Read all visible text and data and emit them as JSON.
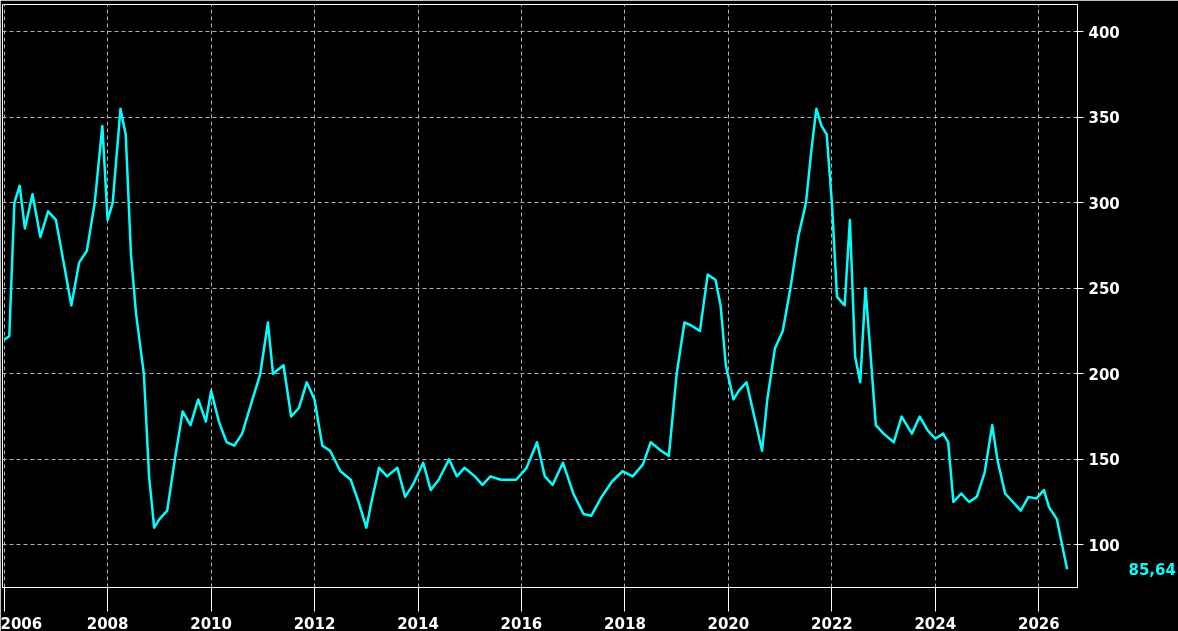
{
  "chart_data": {
    "type": "line",
    "x": [
      "2006-01-01",
      "2006-02-06",
      "2006-03-14",
      "2006-04-20",
      "2006-05-27",
      "2006-07-20",
      "2006-09-13",
      "2006-11-07",
      "2007-01-01",
      "2007-02-25",
      "2007-04-20",
      "2007-06-14",
      "2007-08-08",
      "2007-10-02",
      "2007-11-25",
      "2008-01-01",
      "2008-02-06",
      "2008-04-01",
      "2008-05-08",
      "2008-06-14",
      "2008-07-20",
      "2008-09-13",
      "2008-10-20",
      "2008-11-25",
      "2009-01-01",
      "2009-02-25",
      "2009-04-20",
      "2009-06-14",
      "2009-08-08",
      "2009-10-02",
      "2009-11-25",
      "2010-01-01",
      "2010-02-25",
      "2010-04-20",
      "2010-06-14",
      "2010-08-08",
      "2010-10-20",
      "2010-12-14",
      "2011-02-06",
      "2011-03-14",
      "2011-05-27",
      "2011-07-20",
      "2011-09-13",
      "2011-11-07",
      "2012-01-01",
      "2012-02-25",
      "2012-04-20",
      "2012-07-02",
      "2012-09-13",
      "2012-11-07",
      "2013-01-01",
      "2013-02-06",
      "2013-04-01",
      "2013-05-27",
      "2013-08-08",
      "2013-10-02",
      "2013-11-25",
      "2014-02-06",
      "2014-04-01",
      "2014-05-27",
      "2014-08-08",
      "2014-10-02",
      "2014-11-25",
      "2015-02-06",
      "2015-04-01",
      "2015-05-27",
      "2015-08-08",
      "2015-11-25",
      "2016-02-06",
      "2016-04-20",
      "2016-06-14",
      "2016-08-08",
      "2016-10-20",
      "2017-01-01",
      "2017-03-14",
      "2017-05-08",
      "2017-07-20",
      "2017-10-02",
      "2017-12-14",
      "2018-02-25",
      "2018-05-08",
      "2018-07-02",
      "2018-09-13",
      "2018-11-07",
      "2019-01-01",
      "2019-02-25",
      "2019-04-20",
      "2019-06-14",
      "2019-08-08",
      "2019-10-02",
      "2019-11-07",
      "2019-12-14",
      "2020-02-06",
      "2020-03-14",
      "2020-05-08",
      "2020-07-02",
      "2020-08-26",
      "2020-10-02",
      "2020-11-25",
      "2021-01-19",
      "2021-03-14",
      "2021-05-08",
      "2021-07-02",
      "2021-08-08",
      "2021-09-13",
      "2021-10-20",
      "2021-11-25",
      "2022-01-01",
      "2022-02-06",
      "2022-04-01",
      "2022-05-08",
      "2022-06-14",
      "2022-07-20",
      "2022-08-26",
      "2022-10-02",
      "2022-11-07",
      "2023-01-01",
      "2023-03-14",
      "2023-05-08",
      "2023-07-20",
      "2023-09-13",
      "2023-11-07",
      "2024-01-01",
      "2024-02-25",
      "2024-04-01",
      "2024-05-08",
      "2024-07-02",
      "2024-08-26",
      "2024-10-20",
      "2024-12-14",
      "2025-02-06",
      "2025-03-14",
      "2025-05-08",
      "2025-07-02",
      "2025-08-26",
      "2025-10-20",
      "2025-12-14",
      "2026-02-06",
      "2026-03-14",
      "2026-05-08",
      "2026-06-14",
      "2026-07-20"
    ],
    "series": [
      {
        "color": "#00ffff",
        "values": [
          220,
          222,
          300,
          310,
          285,
          305,
          280,
          295,
          290,
          265,
          240,
          265,
          272,
          300,
          345,
          290,
          300,
          355,
          340,
          270,
          235,
          200,
          140,
          110,
          115,
          120,
          150,
          178,
          170,
          185,
          172,
          190,
          172,
          160,
          158,
          165,
          185,
          200,
          230,
          200,
          205,
          175,
          180,
          195,
          185,
          158,
          155,
          143,
          138,
          125,
          110,
          125,
          145,
          140,
          145,
          128,
          135,
          148,
          132,
          138,
          150,
          140,
          145,
          140,
          135,
          140,
          138,
          138,
          145,
          160,
          140,
          135,
          148,
          130,
          118,
          117,
          128,
          137,
          143,
          140,
          147,
          160,
          155,
          152,
          200,
          230,
          228,
          225,
          258,
          255,
          240,
          205,
          185,
          190,
          195,
          175,
          155,
          185,
          215,
          225,
          250,
          280,
          300,
          330,
          355,
          345,
          340,
          300,
          245,
          240,
          290,
          210,
          195,
          250,
          210,
          170,
          165,
          160,
          175,
          165,
          175,
          167,
          162,
          165,
          160,
          125,
          130,
          125,
          128,
          142,
          170,
          150,
          130,
          125,
          120,
          128,
          127,
          132,
          122,
          115,
          100,
          85.64
        ]
      }
    ],
    "xlim": [
      "2005-12-20",
      "2026-10-01"
    ],
    "xticks": [
      {
        "value": "2006-01-01",
        "label": "2006"
      },
      {
        "value": "2008-01-01",
        "label": "2008"
      },
      {
        "value": "2010-01-01",
        "label": "2010"
      },
      {
        "value": "2012-01-01",
        "label": "2012"
      },
      {
        "value": "2014-01-01",
        "label": "2014"
      },
      {
        "value": "2016-01-01",
        "label": "2016"
      },
      {
        "value": "2018-01-01",
        "label": "2018"
      },
      {
        "value": "2020-01-01",
        "label": "2020"
      },
      {
        "value": "2022-01-01",
        "label": "2022"
      },
      {
        "value": "2024-01-01",
        "label": "2024"
      },
      {
        "value": "2026-01-01",
        "label": "2026"
      }
    ],
    "ylim": [
      75,
      416
    ],
    "yticks": [
      100,
      150,
      200,
      250,
      300,
      350,
      400
    ],
    "grid": true,
    "line_style": "solid",
    "marker": "none",
    "annotations": [
      "85,64"
    ]
  }
}
